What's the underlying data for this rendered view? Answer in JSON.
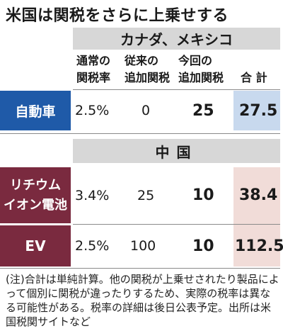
{
  "title": "米国は関税をさらに上乗せする",
  "groups": {
    "canada_mexico": "カナダ、メキシコ",
    "china": "中国"
  },
  "headers": {
    "normal_rate_line1": "通常の",
    "normal_rate_line2": "関税率",
    "previous_line1": "従来の",
    "previous_line2": "追加関税",
    "current_line1": "今回の",
    "current_line2": "追加関税",
    "total": "合 計"
  },
  "rows": {
    "car": {
      "label": "自動車",
      "normal_rate": "2.5%",
      "previous": "0",
      "current": "25",
      "total": "27.5"
    },
    "lithium": {
      "label_line1": "リチウム",
      "label_line2": "イオン電池",
      "normal_rate": "3.4%",
      "previous": "25",
      "current": "10",
      "total": "38.4"
    },
    "ev": {
      "label": "EV",
      "normal_rate": "2.5%",
      "previous": "100",
      "current": "10",
      "total": "112.5"
    }
  },
  "note": "(注)合計は単純計算。他の関税が上乗せされたり製品によって個別に関税が違ったりするため、実際の税率は異なる可能性がある。税率の詳細は後日公表予定。出所は米国税関サイトなど",
  "colors": {
    "car_label_bg": "#1f5aa8",
    "china_label_bg": "#7a2a3f",
    "car_total_bg": "#c8d9ee",
    "china_total_bg": "#f1dcd8",
    "band_bg": "#d7d7d7"
  }
}
